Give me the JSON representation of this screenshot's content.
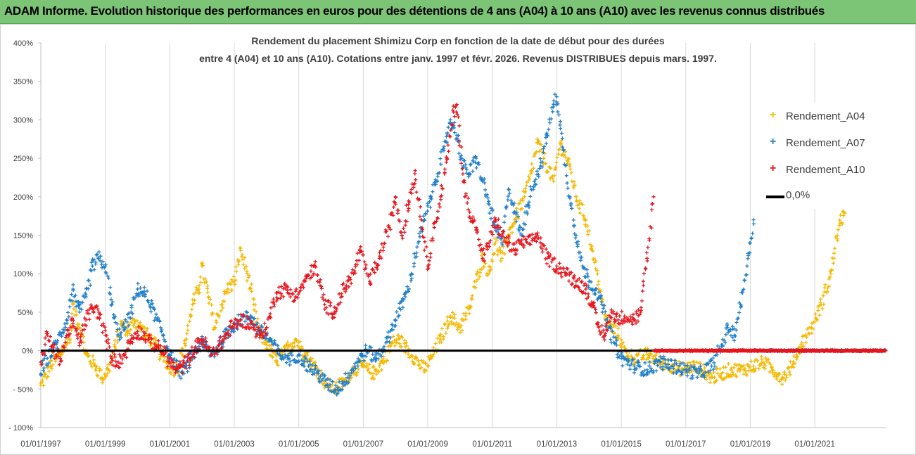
{
  "banner": {
    "title": "ADAM Informe. Evolution historique des performances en euros pour des détentions de 4 ans (A04) à 10 ans (A10) avec les revenus connus distribués"
  },
  "chart_data": {
    "type": "scatter",
    "title_line1": "Rendement du placement Shimizu Corp en fonction de la date de début pour des durées",
    "title_line2": "entre 4 (A04) et 10 ans (A10). Cotations entre janv. 1997 et févr. 2026. Revenus DISTRIBUES depuis mars. 1997.",
    "y_ticks": [
      "- 100%",
      "- 50%",
      "0%",
      "50%",
      "100%",
      "150%",
      "200%",
      "250%",
      "300%",
      "350%",
      "400%"
    ],
    "x_ticks": [
      "01/01/1997",
      "01/01/1999",
      "01/01/2001",
      "01/01/2003",
      "01/01/2005",
      "01/01/2007",
      "01/01/2009",
      "01/01/2011",
      "01/01/2013",
      "01/01/2015",
      "01/01/2017",
      "01/01/2019",
      "01/01/2021"
    ],
    "x_range": [
      1997.0,
      2023.2
    ],
    "ylim": [
      -100,
      400
    ],
    "grid": "vertical",
    "legend_position": "right",
    "series": [
      {
        "name": "Rendement_A04",
        "color": "#f5b800",
        "marker": "+",
        "end": 2022.1,
        "points": [
          [
            1997.0,
            -45
          ],
          [
            1997.3,
            -20
          ],
          [
            1997.6,
            -5
          ],
          [
            1997.9,
            15
          ],
          [
            1998.0,
            60
          ],
          [
            1998.2,
            30
          ],
          [
            1998.4,
            -5
          ],
          [
            1998.7,
            -20
          ],
          [
            1998.9,
            -35
          ],
          [
            1999.1,
            -25
          ],
          [
            1999.3,
            5
          ],
          [
            1999.5,
            35
          ],
          [
            1999.7,
            25
          ],
          [
            1999.9,
            40
          ],
          [
            2000.1,
            30
          ],
          [
            2000.3,
            20
          ],
          [
            2000.5,
            10
          ],
          [
            2000.7,
            -5
          ],
          [
            2000.9,
            -15
          ],
          [
            2001.1,
            -25
          ],
          [
            2001.3,
            -20
          ],
          [
            2001.5,
            15
          ],
          [
            2001.7,
            60
          ],
          [
            2001.9,
            80
          ],
          [
            2002.0,
            110
          ],
          [
            2002.2,
            70
          ],
          [
            2002.4,
            30
          ],
          [
            2002.6,
            60
          ],
          [
            2002.8,
            80
          ],
          [
            2003.0,
            90
          ],
          [
            2003.2,
            130
          ],
          [
            2003.4,
            100
          ],
          [
            2003.6,
            60
          ],
          [
            2003.8,
            20
          ],
          [
            2004.0,
            10
          ],
          [
            2004.3,
            -15
          ],
          [
            2004.6,
            0
          ],
          [
            2004.9,
            15
          ],
          [
            2005.2,
            -5
          ],
          [
            2005.5,
            -20
          ],
          [
            2005.8,
            -40
          ],
          [
            2006.1,
            -50
          ],
          [
            2006.4,
            -40
          ],
          [
            2006.7,
            -25
          ],
          [
            2007.0,
            -20
          ],
          [
            2007.3,
            -30
          ],
          [
            2007.6,
            -15
          ],
          [
            2007.9,
            10
          ],
          [
            2008.1,
            15
          ],
          [
            2008.3,
            5
          ],
          [
            2008.6,
            -10
          ],
          [
            2008.9,
            -25
          ],
          [
            2009.1,
            -10
          ],
          [
            2009.4,
            15
          ],
          [
            2009.7,
            45
          ],
          [
            2010.0,
            30
          ],
          [
            2010.3,
            55
          ],
          [
            2010.5,
            90
          ],
          [
            2010.7,
            120
          ],
          [
            2010.9,
            100
          ],
          [
            2011.1,
            140
          ],
          [
            2011.3,
            120
          ],
          [
            2011.5,
            150
          ],
          [
            2011.7,
            170
          ],
          [
            2012.0,
            200
          ],
          [
            2012.2,
            230
          ],
          [
            2012.4,
            270
          ],
          [
            2012.6,
            250
          ],
          [
            2012.9,
            220
          ],
          [
            2013.1,
            270
          ],
          [
            2013.4,
            240
          ],
          [
            2013.6,
            200
          ],
          [
            2013.9,
            170
          ],
          [
            2014.1,
            130
          ],
          [
            2014.3,
            90
          ],
          [
            2014.5,
            40
          ],
          [
            2014.7,
            30
          ],
          [
            2014.9,
            20
          ],
          [
            2015.1,
            0
          ],
          [
            2015.4,
            -10
          ],
          [
            2015.8,
            -5
          ],
          [
            2016.2,
            -15
          ],
          [
            2016.6,
            -20
          ],
          [
            2016.9,
            -25
          ],
          [
            2017.2,
            -20
          ],
          [
            2017.5,
            -25
          ],
          [
            2017.8,
            -35
          ],
          [
            2018.1,
            -30
          ],
          [
            2018.4,
            -25
          ],
          [
            2018.8,
            -25
          ],
          [
            2019.1,
            -20
          ],
          [
            2019.4,
            -15
          ],
          [
            2019.7,
            -25
          ],
          [
            2020.0,
            -35
          ],
          [
            2020.3,
            -20
          ],
          [
            2020.6,
            10
          ],
          [
            2020.9,
            30
          ],
          [
            2021.2,
            60
          ],
          [
            2021.5,
            100
          ],
          [
            2021.7,
            150
          ],
          [
            2021.9,
            180
          ],
          [
            2022.1,
            200
          ]
        ]
      },
      {
        "name": "Rendement_A07",
        "color": "#1f7ec9",
        "marker": "+",
        "end": 2019.1,
        "points": [
          [
            1997.0,
            -30
          ],
          [
            1997.2,
            -10
          ],
          [
            1997.5,
            10
          ],
          [
            1997.8,
            40
          ],
          [
            1998.0,
            80
          ],
          [
            1998.2,
            50
          ],
          [
            1998.4,
            70
          ],
          [
            1998.6,
            110
          ],
          [
            1998.8,
            120
          ],
          [
            1999.0,
            110
          ],
          [
            1999.2,
            60
          ],
          [
            1999.4,
            20
          ],
          [
            1999.6,
            30
          ],
          [
            1999.8,
            50
          ],
          [
            2000.0,
            80
          ],
          [
            2000.2,
            75
          ],
          [
            2000.4,
            60
          ],
          [
            2000.6,
            40
          ],
          [
            2000.8,
            20
          ],
          [
            2001.0,
            -5
          ],
          [
            2001.2,
            -20
          ],
          [
            2001.4,
            -30
          ],
          [
            2001.6,
            -15
          ],
          [
            2001.8,
            0
          ],
          [
            2002.0,
            10
          ],
          [
            2002.3,
            -5
          ],
          [
            2002.6,
            10
          ],
          [
            2002.9,
            30
          ],
          [
            2003.2,
            40
          ],
          [
            2003.5,
            45
          ],
          [
            2003.8,
            25
          ],
          [
            2004.1,
            15
          ],
          [
            2004.4,
            -5
          ],
          [
            2004.7,
            -10
          ],
          [
            2005.0,
            -5
          ],
          [
            2005.3,
            -20
          ],
          [
            2005.6,
            -30
          ],
          [
            2005.9,
            -45
          ],
          [
            2006.2,
            -50
          ],
          [
            2006.5,
            -35
          ],
          [
            2006.8,
            -15
          ],
          [
            2007.1,
            0
          ],
          [
            2007.4,
            -10
          ],
          [
            2007.7,
            10
          ],
          [
            2008.0,
            40
          ],
          [
            2008.3,
            70
          ],
          [
            2008.5,
            100
          ],
          [
            2008.7,
            140
          ],
          [
            2008.9,
            170
          ],
          [
            2009.1,
            200
          ],
          [
            2009.3,
            230
          ],
          [
            2009.5,
            260
          ],
          [
            2009.7,
            300
          ],
          [
            2009.9,
            280
          ],
          [
            2010.1,
            240
          ],
          [
            2010.3,
            230
          ],
          [
            2010.5,
            250
          ],
          [
            2010.7,
            220
          ],
          [
            2010.9,
            190
          ],
          [
            2011.1,
            160
          ],
          [
            2011.3,
            140
          ],
          [
            2011.5,
            210
          ],
          [
            2011.7,
            180
          ],
          [
            2011.9,
            150
          ],
          [
            2012.1,
            190
          ],
          [
            2012.3,
            220
          ],
          [
            2012.5,
            240
          ],
          [
            2012.7,
            280
          ],
          [
            2012.9,
            320
          ],
          [
            2013.0,
            330
          ],
          [
            2013.2,
            260
          ],
          [
            2013.4,
            200
          ],
          [
            2013.6,
            150
          ],
          [
            2013.8,
            110
          ],
          [
            2014.0,
            90
          ],
          [
            2014.2,
            80
          ],
          [
            2014.4,
            60
          ],
          [
            2014.6,
            30
          ],
          [
            2014.8,
            10
          ],
          [
            2015.0,
            -10
          ],
          [
            2015.4,
            -20
          ],
          [
            2015.8,
            -25
          ],
          [
            2016.2,
            -15
          ],
          [
            2016.6,
            -20
          ],
          [
            2017.0,
            -25
          ],
          [
            2017.4,
            -30
          ],
          [
            2017.8,
            -20
          ],
          [
            2018.1,
            5
          ],
          [
            2018.3,
            30
          ],
          [
            2018.5,
            20
          ],
          [
            2018.7,
            60
          ],
          [
            2018.9,
            110
          ],
          [
            2019.0,
            140
          ],
          [
            2019.1,
            170
          ]
        ]
      },
      {
        "name": "Rendement_A10",
        "color": "#e8141c",
        "marker": "+",
        "end": 2016.0,
        "points": [
          [
            1997.0,
            -15
          ],
          [
            1997.2,
            20
          ],
          [
            1997.4,
            0
          ],
          [
            1997.6,
            -10
          ],
          [
            1997.8,
            20
          ],
          [
            1998.0,
            35
          ],
          [
            1998.2,
            10
          ],
          [
            1998.4,
            40
          ],
          [
            1998.6,
            55
          ],
          [
            1998.8,
            50
          ],
          [
            1999.0,
            20
          ],
          [
            1999.2,
            -10
          ],
          [
            1999.4,
            -15
          ],
          [
            1999.6,
            -5
          ],
          [
            1999.8,
            15
          ],
          [
            2000.0,
            25
          ],
          [
            2000.2,
            20
          ],
          [
            2000.4,
            10
          ],
          [
            2000.6,
            5
          ],
          [
            2000.8,
            0
          ],
          [
            2001.0,
            -15
          ],
          [
            2001.2,
            -25
          ],
          [
            2001.4,
            -20
          ],
          [
            2001.6,
            -10
          ],
          [
            2001.8,
            5
          ],
          [
            2002.0,
            15
          ],
          [
            2002.3,
            -5
          ],
          [
            2002.6,
            10
          ],
          [
            2002.9,
            30
          ],
          [
            2003.2,
            40
          ],
          [
            2003.5,
            35
          ],
          [
            2003.8,
            20
          ],
          [
            2004.0,
            30
          ],
          [
            2004.3,
            75
          ],
          [
            2004.6,
            80
          ],
          [
            2004.9,
            70
          ],
          [
            2005.2,
            90
          ],
          [
            2005.5,
            110
          ],
          [
            2005.8,
            60
          ],
          [
            2006.1,
            50
          ],
          [
            2006.4,
            80
          ],
          [
            2006.7,
            100
          ],
          [
            2006.9,
            130
          ],
          [
            2007.2,
            90
          ],
          [
            2007.5,
            120
          ],
          [
            2007.8,
            160
          ],
          [
            2008.0,
            200
          ],
          [
            2008.2,
            150
          ],
          [
            2008.4,
            190
          ],
          [
            2008.6,
            230
          ],
          [
            2008.8,
            170
          ],
          [
            2009.0,
            110
          ],
          [
            2009.2,
            160
          ],
          [
            2009.4,
            200
          ],
          [
            2009.6,
            250
          ],
          [
            2009.8,
            310
          ],
          [
            2009.9,
            320
          ],
          [
            2010.1,
            220
          ],
          [
            2010.3,
            180
          ],
          [
            2010.5,
            160
          ],
          [
            2010.7,
            120
          ],
          [
            2010.9,
            140
          ],
          [
            2011.1,
            170
          ],
          [
            2011.3,
            150
          ],
          [
            2011.5,
            140
          ],
          [
            2011.7,
            130
          ],
          [
            2011.9,
            140
          ],
          [
            2012.1,
            140
          ],
          [
            2012.4,
            150
          ],
          [
            2012.7,
            120
          ],
          [
            2013.0,
            110
          ],
          [
            2013.3,
            100
          ],
          [
            2013.6,
            90
          ],
          [
            2013.9,
            80
          ],
          [
            2014.1,
            60
          ],
          [
            2014.3,
            30
          ],
          [
            2014.5,
            20
          ],
          [
            2014.7,
            50
          ],
          [
            2014.9,
            40
          ],
          [
            2015.1,
            45
          ],
          [
            2015.4,
            40
          ],
          [
            2015.6,
            50
          ],
          [
            2015.8,
            120
          ],
          [
            2016.0,
            200
          ]
        ]
      },
      {
        "name": "0,0%",
        "color": "#000000",
        "type": "line",
        "y": 0
      }
    ]
  }
}
